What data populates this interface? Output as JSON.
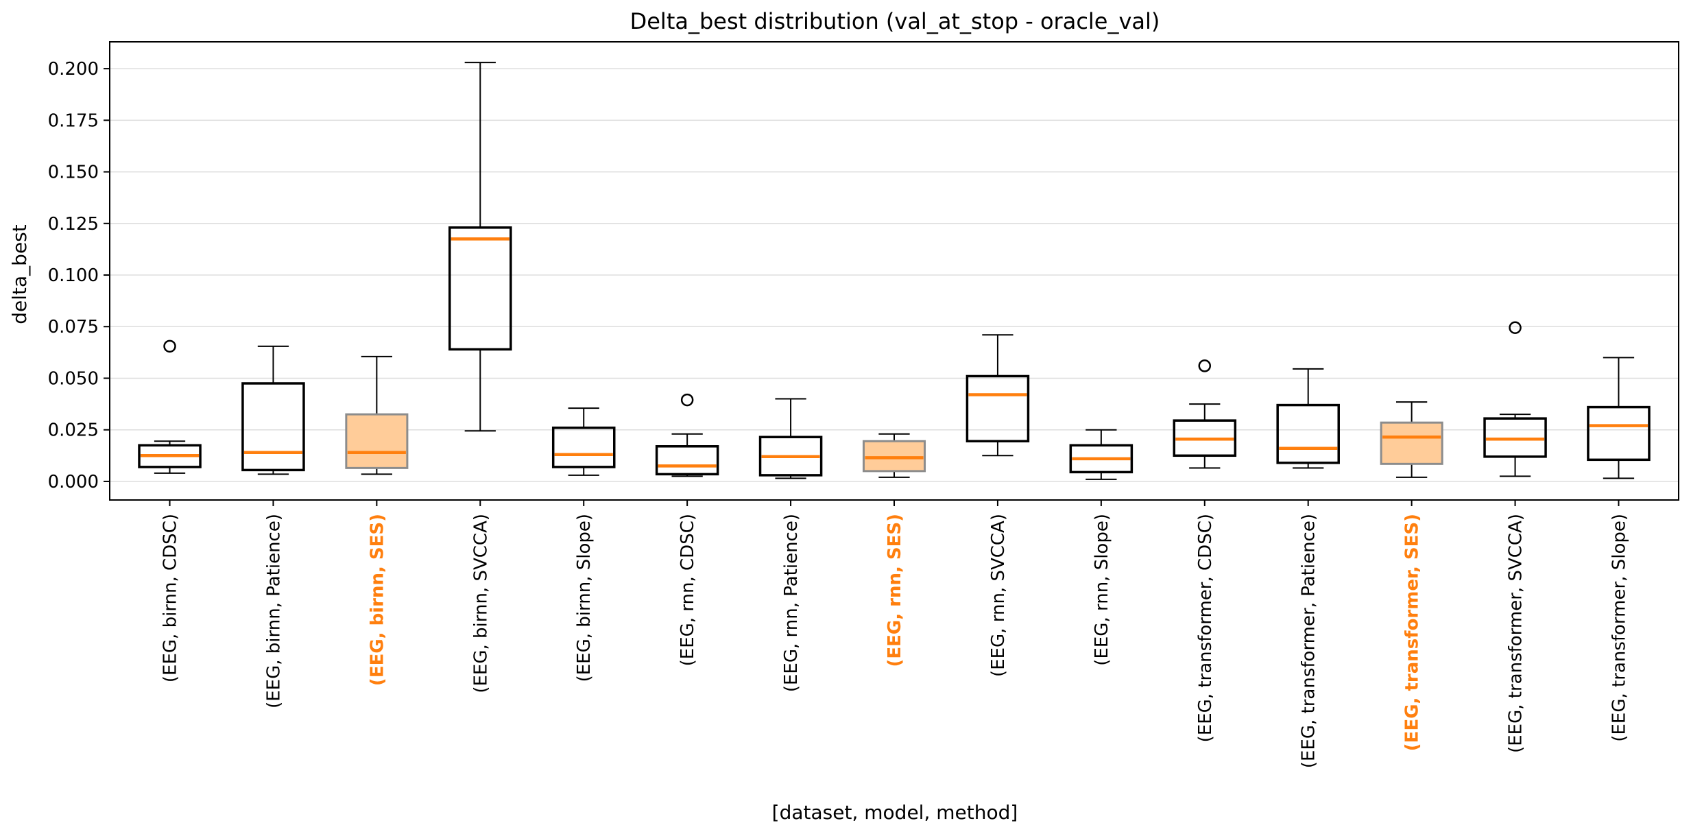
{
  "chart_data": {
    "type": "box",
    "title": "Delta_best distribution (val_at_stop - oracle_val)",
    "xlabel": "[dataset, model, method]",
    "ylabel": "delta_best",
    "ylim": [
      -0.009,
      0.213
    ],
    "yticks": [
      0.0,
      0.025,
      0.05,
      0.075,
      0.1,
      0.125,
      0.15,
      0.175,
      0.2
    ],
    "ytick_labels": [
      "0.000",
      "0.025",
      "0.050",
      "0.075",
      "0.100",
      "0.125",
      "0.150",
      "0.175",
      "0.200"
    ],
    "grid": "horizontal",
    "colors": {
      "box_edge": "#000000",
      "median": "#ff7f0e",
      "highlight_fill": "#ffcc99",
      "highlight_edge": "#8c8c8c",
      "highlight_label": "#ff7f0e",
      "grid": "#dddddd"
    },
    "boxes": [
      {
        "label": "(EEG, birnn, CDSC)",
        "highlight": false,
        "whislo": 0.004,
        "q1": 0.007,
        "med": 0.0125,
        "q3": 0.0175,
        "whishi": 0.0195,
        "fliers": [
          0.0655
        ]
      },
      {
        "label": "(EEG, birnn, Patience)",
        "highlight": false,
        "whislo": 0.0035,
        "q1": 0.0055,
        "med": 0.014,
        "q3": 0.0475,
        "whishi": 0.0655,
        "fliers": []
      },
      {
        "label": "(EEG, birnn, SES)",
        "highlight": true,
        "whislo": 0.0035,
        "q1": 0.0065,
        "med": 0.014,
        "q3": 0.0325,
        "whishi": 0.0605,
        "fliers": []
      },
      {
        "label": "(EEG, birnn, SVCCA)",
        "highlight": false,
        "whislo": 0.0245,
        "q1": 0.064,
        "med": 0.1175,
        "q3": 0.123,
        "whishi": 0.203,
        "fliers": []
      },
      {
        "label": "(EEG, birnn, Slope)",
        "highlight": false,
        "whislo": 0.003,
        "q1": 0.007,
        "med": 0.013,
        "q3": 0.026,
        "whishi": 0.0355,
        "fliers": []
      },
      {
        "label": "(EEG, rnn, CDSC)",
        "highlight": false,
        "whislo": 0.0025,
        "q1": 0.0035,
        "med": 0.0075,
        "q3": 0.017,
        "whishi": 0.023,
        "fliers": [
          0.0395
        ]
      },
      {
        "label": "(EEG, rnn, Patience)",
        "highlight": false,
        "whislo": 0.0015,
        "q1": 0.003,
        "med": 0.012,
        "q3": 0.0215,
        "whishi": 0.04,
        "fliers": []
      },
      {
        "label": "(EEG, rnn, SES)",
        "highlight": true,
        "whislo": 0.002,
        "q1": 0.005,
        "med": 0.0115,
        "q3": 0.0195,
        "whishi": 0.023,
        "fliers": []
      },
      {
        "label": "(EEG, rnn, SVCCA)",
        "highlight": false,
        "whislo": 0.0125,
        "q1": 0.0195,
        "med": 0.042,
        "q3": 0.051,
        "whishi": 0.071,
        "fliers": []
      },
      {
        "label": "(EEG, rnn, Slope)",
        "highlight": false,
        "whislo": 0.001,
        "q1": 0.0045,
        "med": 0.011,
        "q3": 0.0175,
        "whishi": 0.025,
        "fliers": []
      },
      {
        "label": "(EEG, transformer, CDSC)",
        "highlight": false,
        "whislo": 0.0065,
        "q1": 0.0125,
        "med": 0.0205,
        "q3": 0.0295,
        "whishi": 0.0375,
        "fliers": [
          0.056
        ]
      },
      {
        "label": "(EEG, transformer, Patience)",
        "highlight": false,
        "whislo": 0.0065,
        "q1": 0.009,
        "med": 0.016,
        "q3": 0.037,
        "whishi": 0.0545,
        "fliers": []
      },
      {
        "label": "(EEG, transformer, SES)",
        "highlight": true,
        "whislo": 0.002,
        "q1": 0.0085,
        "med": 0.0215,
        "q3": 0.0285,
        "whishi": 0.0385,
        "fliers": []
      },
      {
        "label": "(EEG, transformer, SVCCA)",
        "highlight": false,
        "whislo": 0.0025,
        "q1": 0.012,
        "med": 0.0205,
        "q3": 0.0305,
        "whishi": 0.0325,
        "fliers": [
          0.0745
        ]
      },
      {
        "label": "(EEG, transformer, Slope)",
        "highlight": false,
        "whislo": 0.0015,
        "q1": 0.0105,
        "med": 0.027,
        "q3": 0.036,
        "whishi": 0.06,
        "fliers": []
      }
    ]
  }
}
